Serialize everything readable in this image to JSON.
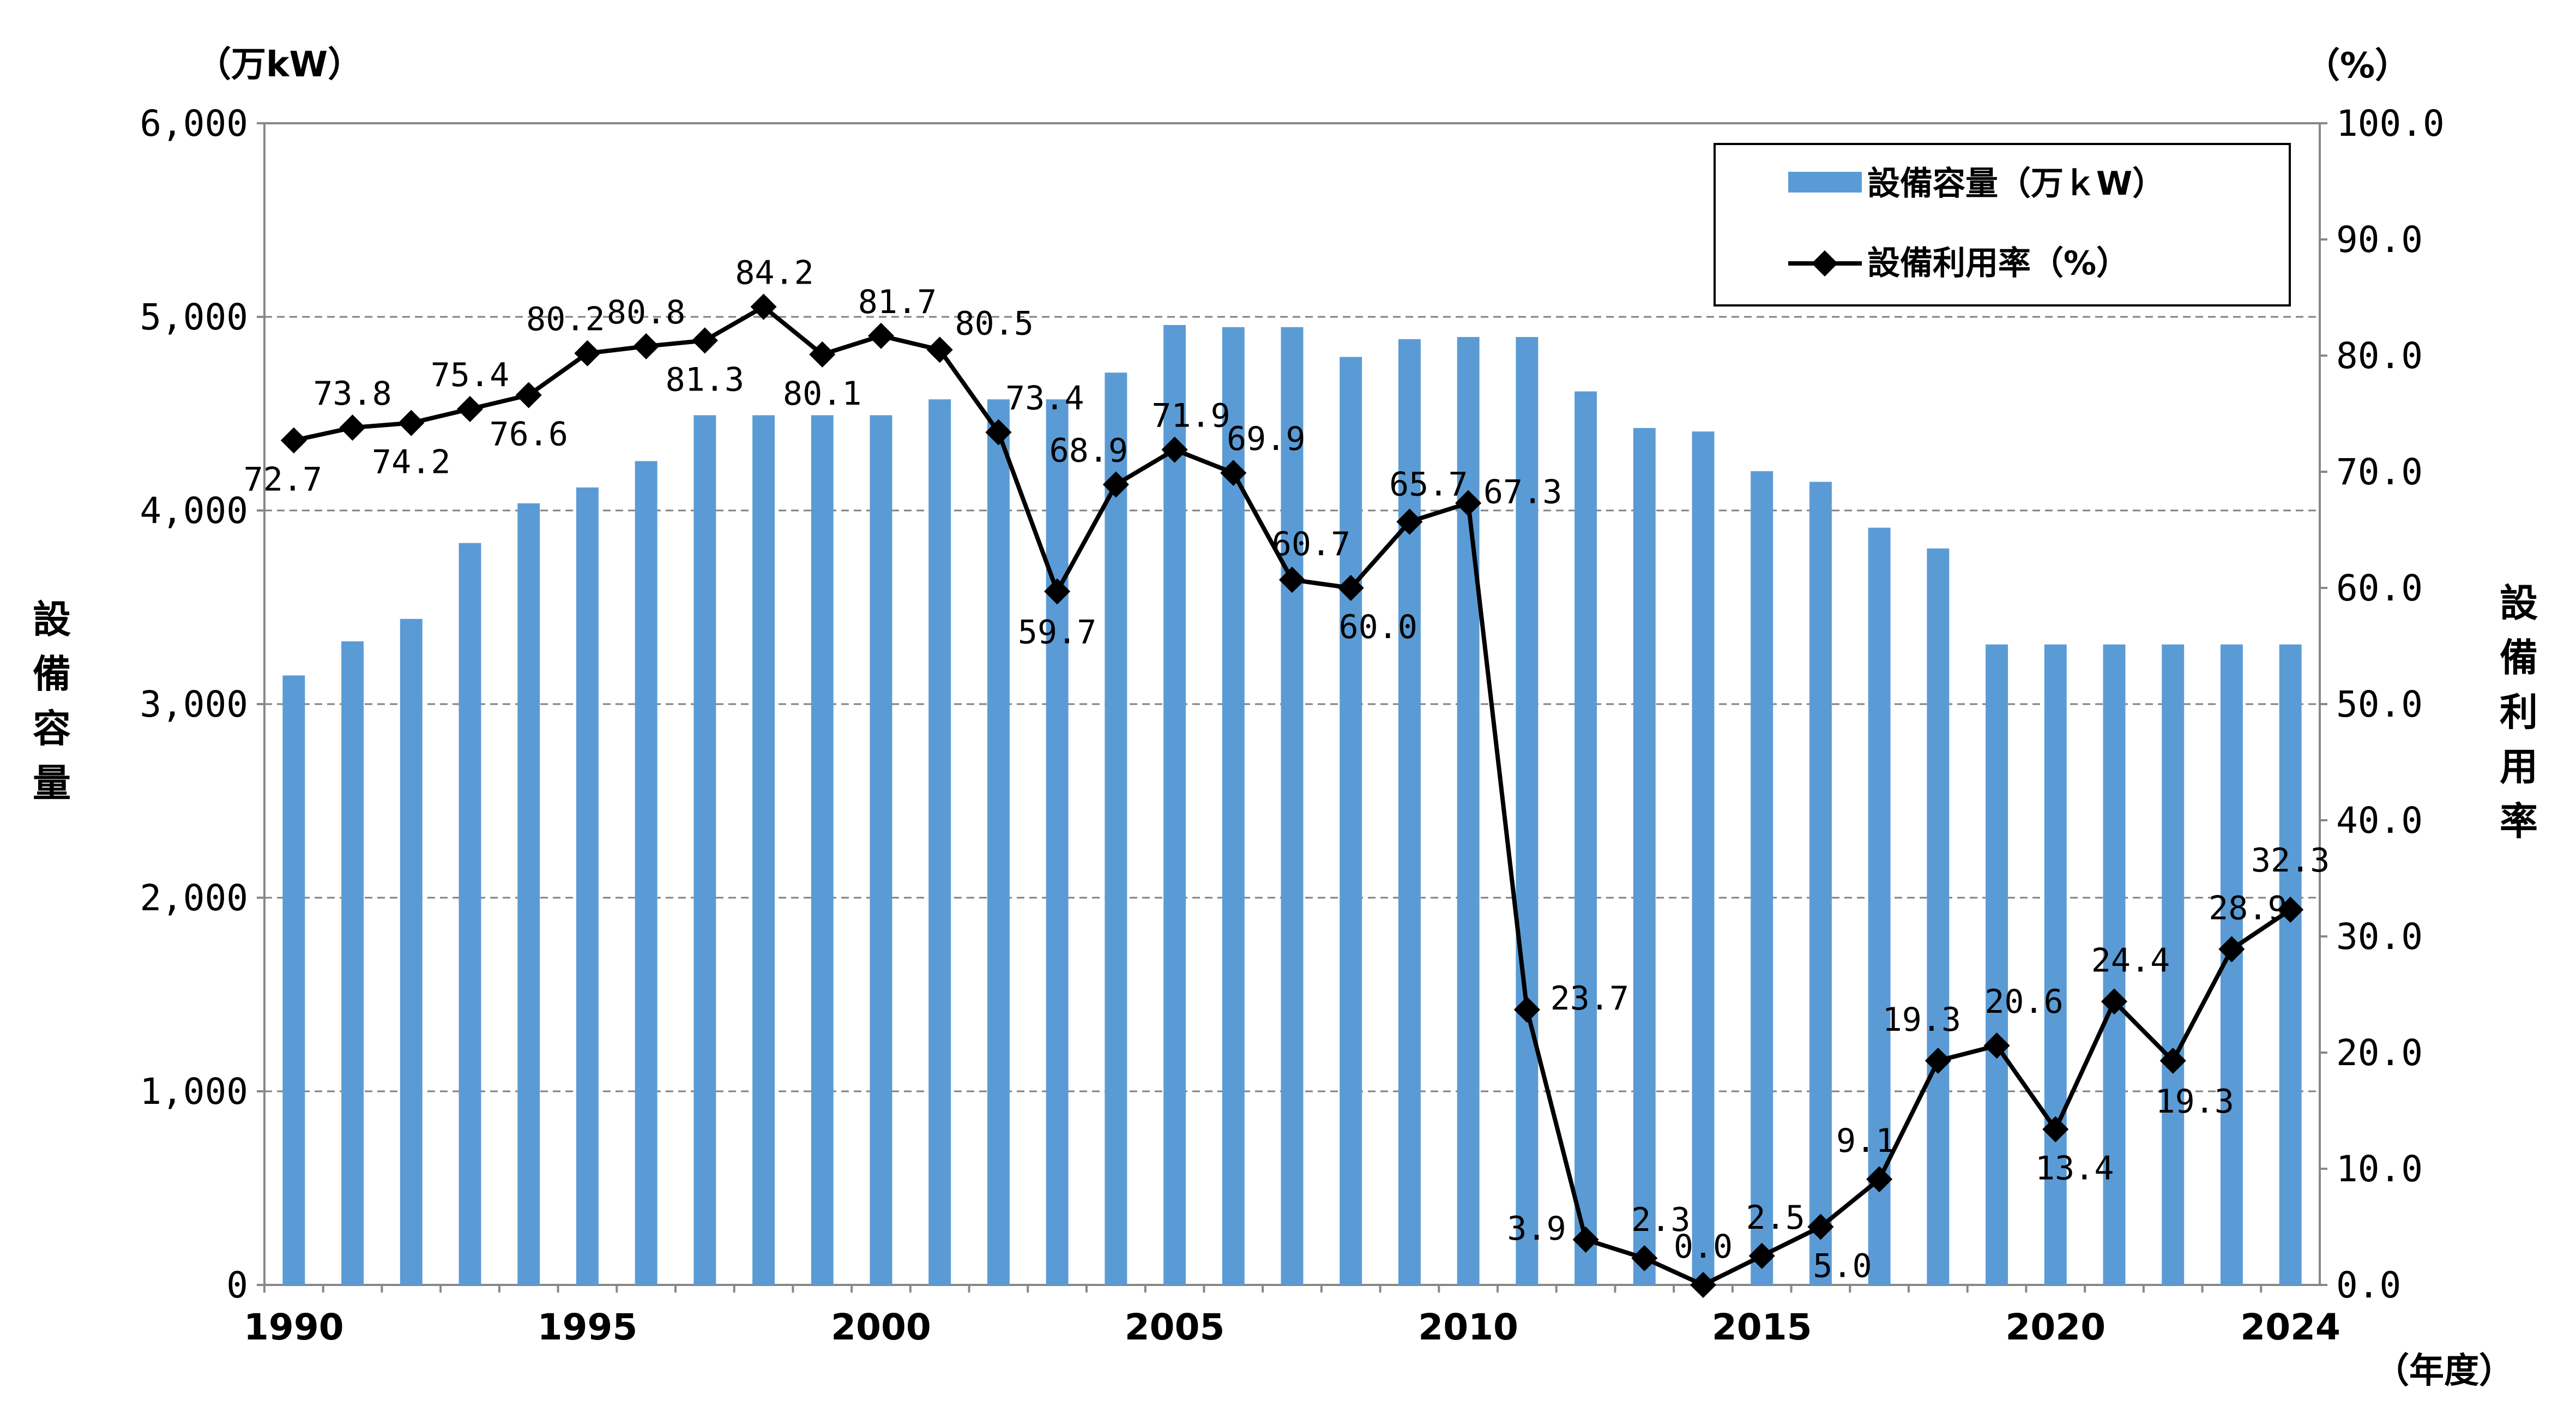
{
  "chart_data": {
    "type": "bar+line",
    "left_axis": {
      "unit": "（万kW）",
      "title": "設備容量",
      "ylim": [
        0,
        6000
      ],
      "ticks": [
        "0",
        "1,000",
        "2,000",
        "3,000",
        "4,000",
        "5,000",
        "6,000"
      ]
    },
    "right_axis": {
      "unit": "（%）",
      "title": "設備利用率",
      "ylim": [
        0,
        100
      ],
      "ticks": [
        "0.0",
        "10.0",
        "20.0",
        "30.0",
        "40.0",
        "50.0",
        "60.0",
        "70.0",
        "80.0",
        "90.0",
        "100.0"
      ]
    },
    "x_axis": {
      "unit": "（年度）",
      "tick_labels": [
        "1990",
        "1995",
        "2000",
        "2005",
        "2010",
        "2015",
        "2020",
        "2024"
      ]
    },
    "legend": {
      "placement": "top-right",
      "bar_label": "設備容量（万ｋW）",
      "line_label": "設備利用率（%）"
    },
    "years": [
      1990,
      1991,
      1992,
      1993,
      1994,
      1995,
      1996,
      1997,
      1998,
      1999,
      2000,
      2001,
      2002,
      2003,
      2004,
      2005,
      2006,
      2007,
      2008,
      2009,
      2010,
      2011,
      2012,
      2013,
      2014,
      2015,
      2016,
      2017,
      2018,
      2019,
      2020,
      2021,
      2022,
      2023,
      2024
    ],
    "series": [
      {
        "name": "設備容量（万ｋW）",
        "axis": "left",
        "values": [
          3148,
          3324,
          3440,
          3832,
          4037,
          4119,
          4255,
          4492,
          4492,
          4492,
          4492,
          4574,
          4574,
          4574,
          4712,
          4958,
          4947,
          4947,
          4793,
          4885,
          4896,
          4896,
          4615,
          4426,
          4408,
          4203,
          4148,
          3911,
          3804,
          3308,
          3308,
          3308,
          3308,
          3308,
          3308
        ]
      },
      {
        "name": "設備利用率（%）",
        "axis": "right",
        "values": [
          72.7,
          73.8,
          74.2,
          75.4,
          76.6,
          80.2,
          80.8,
          81.3,
          84.2,
          80.1,
          81.7,
          80.5,
          73.4,
          59.7,
          68.9,
          71.9,
          69.9,
          60.7,
          60.0,
          65.7,
          67.3,
          23.7,
          3.9,
          2.3,
          0.0,
          2.5,
          5.0,
          9.1,
          19.3,
          20.6,
          13.4,
          24.4,
          19.3,
          28.9,
          32.3
        ],
        "labels": [
          "72.7",
          "73.8",
          "74.2",
          "75.4",
          "76.6",
          "80.2",
          "80.8",
          "81.3",
          "84.2",
          "80.1",
          "81.7",
          "80.5",
          "73.4",
          "59.7",
          "68.9",
          "71.9",
          "69.9",
          "60.7",
          "60.0",
          "65.7",
          "67.3",
          "23.7",
          "3.9",
          "2.3",
          "0.0",
          "2.5",
          "5.0",
          "9.1",
          "19.3",
          "20.6",
          "13.4",
          "24.4",
          "19.3",
          "28.9",
          "32.3"
        ]
      }
    ],
    "colors": {
      "bar": "#5b9bd5",
      "line": "#000000",
      "grid": "#808080"
    }
  }
}
